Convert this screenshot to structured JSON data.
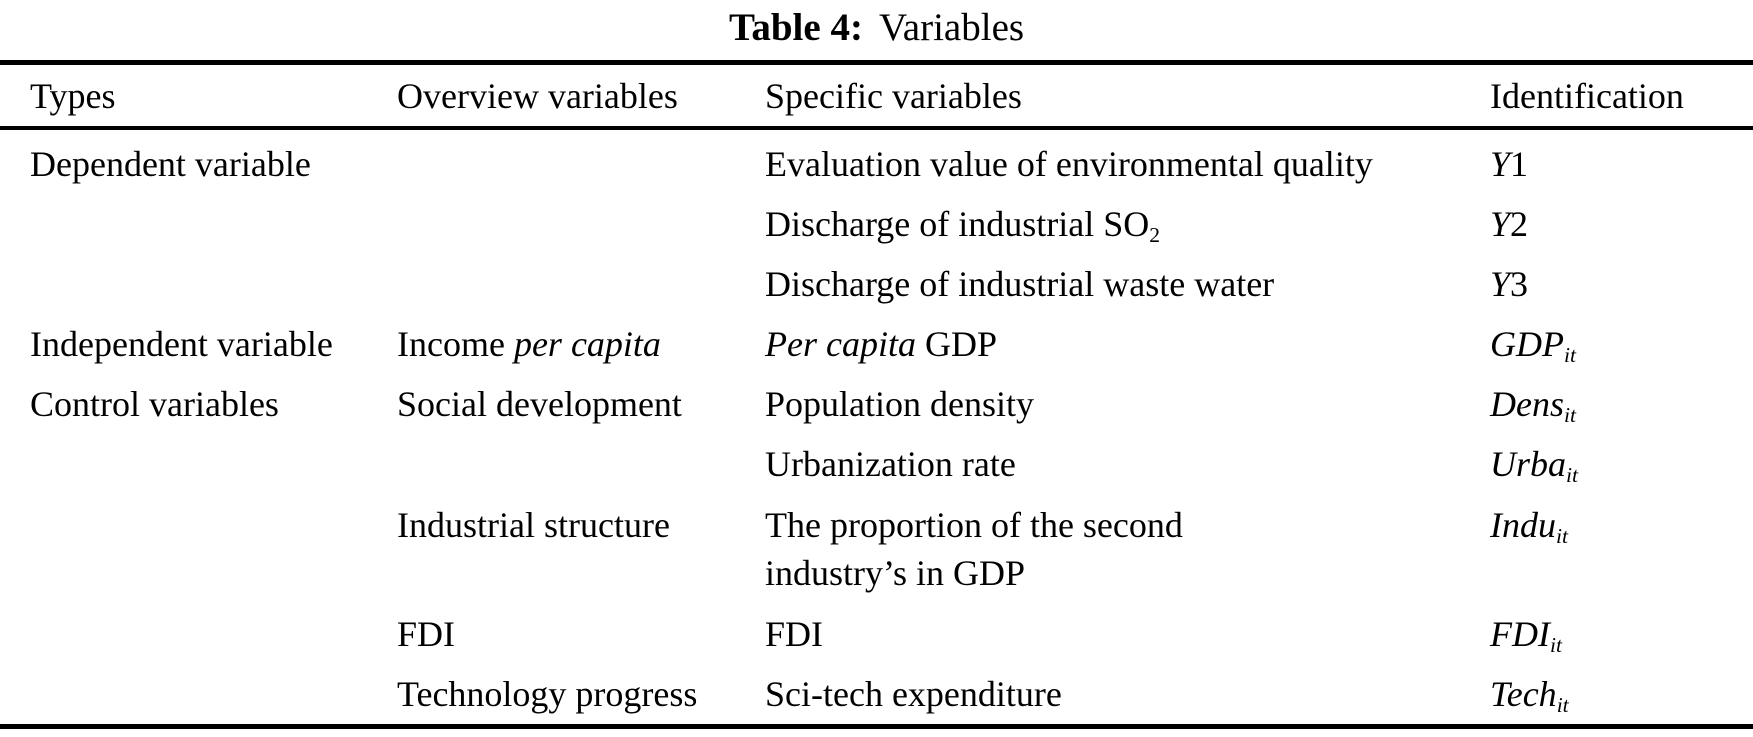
{
  "title": {
    "label": "Table 4:",
    "text": "Variables"
  },
  "table": {
    "headers": [
      "Types",
      "Overview variables",
      "Specific variables",
      "Identification"
    ],
    "rows": [
      {
        "type": [
          {
            "t": "Dependent variable"
          }
        ],
        "overview": [],
        "specific": [
          {
            "t": "Evaluation value of environmental quality"
          }
        ],
        "id": [
          {
            "t": "Y",
            "i": true
          },
          {
            "t": "1"
          }
        ]
      },
      {
        "type": [],
        "overview": [],
        "specific": [
          {
            "t": "Discharge of industrial SO"
          },
          {
            "t": "2",
            "s": true
          }
        ],
        "id": [
          {
            "t": "Y",
            "i": true
          },
          {
            "t": "2"
          }
        ]
      },
      {
        "type": [],
        "overview": [],
        "specific": [
          {
            "t": "Discharge of industrial waste water"
          }
        ],
        "id": [
          {
            "t": "Y",
            "i": true
          },
          {
            "t": "3"
          }
        ]
      },
      {
        "type": [
          {
            "t": "Independent variable"
          }
        ],
        "overview": [
          {
            "t": "Income "
          },
          {
            "t": "per capita",
            "i": true
          }
        ],
        "specific": [
          {
            "t": "Per capita",
            "i": true
          },
          {
            "t": " GDP"
          }
        ],
        "id": [
          {
            "t": "GDP",
            "i": true
          },
          {
            "t": "it",
            "s": true,
            "i": true
          }
        ]
      },
      {
        "type": [
          {
            "t": "Control variables"
          }
        ],
        "overview": [
          {
            "t": "Social development"
          }
        ],
        "specific": [
          {
            "t": "Population density"
          }
        ],
        "id": [
          {
            "t": "Dens",
            "i": true
          },
          {
            "t": "it",
            "s": true,
            "i": true
          }
        ]
      },
      {
        "type": [],
        "overview": [],
        "specific": [
          {
            "t": "Urbanization rate"
          }
        ],
        "id": [
          {
            "t": "Urba",
            "i": true
          },
          {
            "t": "it",
            "s": true,
            "i": true
          }
        ]
      },
      {
        "twoline": true,
        "type": [],
        "overview": [
          {
            "t": "Industrial structure"
          }
        ],
        "specific": [
          {
            "t": "The proportion of the second"
          },
          {
            "br": true
          },
          {
            "t": "industry’s in GDP"
          }
        ],
        "id": [
          {
            "t": "Indu",
            "i": true
          },
          {
            "t": "it",
            "s": true,
            "i": true
          }
        ]
      },
      {
        "type": [],
        "overview": [
          {
            "t": "FDI"
          }
        ],
        "specific": [
          {
            "t": "FDI"
          }
        ],
        "id": [
          {
            "t": "FDI",
            "i": true
          },
          {
            "t": "it",
            "s": true,
            "i": true
          }
        ]
      },
      {
        "type": [],
        "overview": [
          {
            "t": "Technology progress"
          }
        ],
        "specific": [
          {
            "t": "Sci-tech expenditure"
          }
        ],
        "id": [
          {
            "t": "Tech",
            "i": true
          },
          {
            "t": "it",
            "s": true,
            "i": true
          }
        ]
      }
    ]
  },
  "colors": {
    "background": "#ffffff",
    "text": "#000000",
    "rule": "#000000"
  }
}
